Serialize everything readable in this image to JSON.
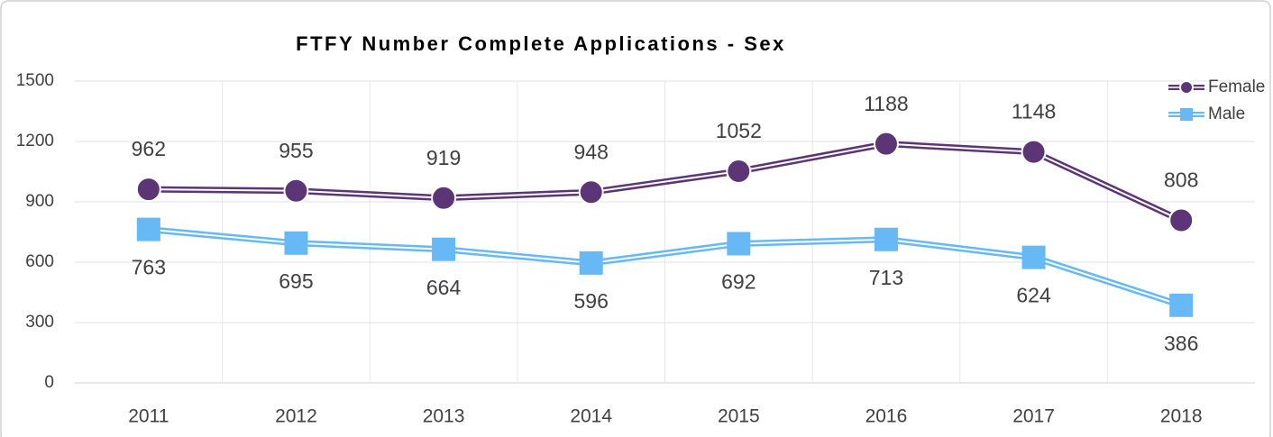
{
  "chart_data": {
    "type": "line",
    "title": "FTFY Number Complete Applications - Sex",
    "categories": [
      "2011",
      "2012",
      "2013",
      "2014",
      "2015",
      "2016",
      "2017",
      "2018"
    ],
    "series": [
      {
        "name": "Female",
        "color": "#5c3577",
        "marker": "circle",
        "values": [
          962,
          955,
          919,
          948,
          1052,
          1188,
          1148,
          808
        ]
      },
      {
        "name": "Male",
        "color": "#66b9f5",
        "marker": "square",
        "values": [
          763,
          695,
          664,
          596,
          692,
          713,
          624,
          386
        ]
      }
    ],
    "ylim": [
      0,
      1500
    ],
    "yticks": [
      0,
      300,
      600,
      900,
      1200,
      1500
    ],
    "grid": true,
    "legend": "top-right"
  }
}
